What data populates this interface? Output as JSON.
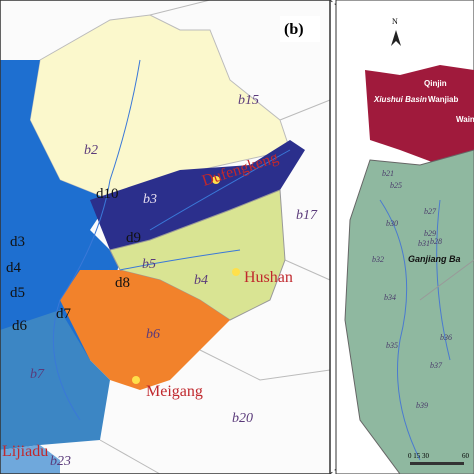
{
  "left_panel": {
    "panel_label": "(b)",
    "zones": [
      "b15",
      "b2",
      "b3",
      "b17",
      "b5",
      "b4",
      "b6",
      "b7",
      "b20",
      "b23"
    ],
    "stations": [
      "d10",
      "d9",
      "d3",
      "d4",
      "d5",
      "d8",
      "d6",
      "d7"
    ],
    "cities": [
      "Dufengkeng",
      "Hushan",
      "Meigang",
      "Lijiadu"
    ]
  },
  "right_panel": {
    "north": "N",
    "places": [
      "Qinjin",
      "Xiushui Basin",
      "Wanjiab",
      "Wain",
      "Ganjiang Ba"
    ],
    "zones": [
      "b21",
      "b25",
      "b27",
      "b30",
      "b29",
      "b28",
      "b31",
      "b32",
      "b34",
      "b35",
      "b36",
      "b37",
      "b39"
    ],
    "scale": [
      "0 15 30",
      "60"
    ]
  }
}
